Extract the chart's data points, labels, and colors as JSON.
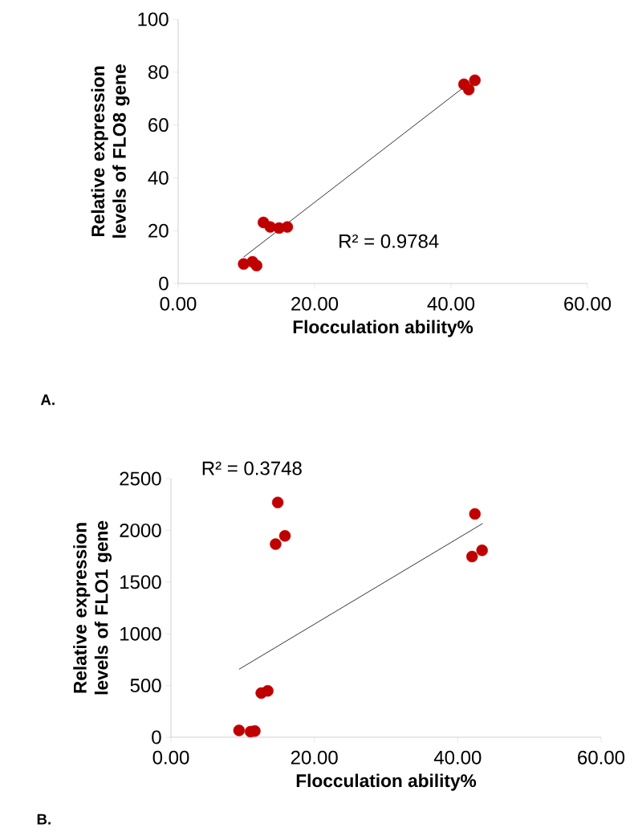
{
  "chart_data": [
    {
      "type": "scatter",
      "xlabel": "Flocculation ability%",
      "ylabel": "Relative expression levels of FLO8 gene",
      "xlim": [
        0,
        60
      ],
      "ylim": [
        0,
        100
      ],
      "xticks": [
        {
          "value": 0,
          "label": "0.00"
        },
        {
          "value": 20,
          "label": "20.00"
        },
        {
          "value": 40,
          "label": "40.00"
        },
        {
          "value": 60,
          "label": "60.00"
        }
      ],
      "yticks": [
        0,
        20,
        40,
        60,
        80,
        100
      ],
      "annotations": [
        "R² = 0.9784",
        "A."
      ],
      "series": [
        {
          "type": "scatter",
          "color": "#c00000",
          "marker": "circle",
          "x": [
            9.6,
            10.9,
            11.5,
            12.5,
            13.5,
            14.8,
            16.0,
            41.9,
            42.6,
            43.5
          ],
          "values": [
            7.4,
            8.2,
            6.8,
            23.1,
            21.4,
            21.0,
            21.4,
            75.4,
            73.4,
            76.9
          ]
        },
        {
          "type": "line",
          "color": "#000000",
          "marker": "none",
          "x": [
            9.6,
            43.5
          ],
          "values": [
            10.0,
            77.5
          ]
        }
      ]
    },
    {
      "type": "scatter",
      "xlabel": "Flocculation ability%",
      "ylabel": "Relative expression levels of FLO1 gene",
      "xlim": [
        0,
        60
      ],
      "ylim": [
        0,
        2500
      ],
      "xticks": [
        {
          "value": 0,
          "label": "0.00"
        },
        {
          "value": 20,
          "label": "20.00"
        },
        {
          "value": 40,
          "label": "40.00"
        },
        {
          "value": 60,
          "label": "60.00"
        }
      ],
      "yticks": [
        0,
        500,
        1000,
        1500,
        2000,
        2500
      ],
      "annotations": [
        "R² = 0.3748",
        "B."
      ],
      "series": [
        {
          "type": "scatter",
          "color": "#c00000",
          "marker": "circle",
          "x": [
            9.5,
            11.1,
            11.7,
            12.6,
            13.5,
            14.9,
            14.6,
            15.9,
            42.4,
            42.0,
            43.4
          ],
          "values": [
            66,
            54,
            60,
            427,
            448,
            2270,
            1867,
            1947,
            2159,
            1747,
            1807
          ]
        },
        {
          "type": "line",
          "color": "#000000",
          "marker": "none",
          "x": [
            9.5,
            43.5
          ],
          "values": [
            657,
            2067
          ]
        }
      ]
    }
  ]
}
